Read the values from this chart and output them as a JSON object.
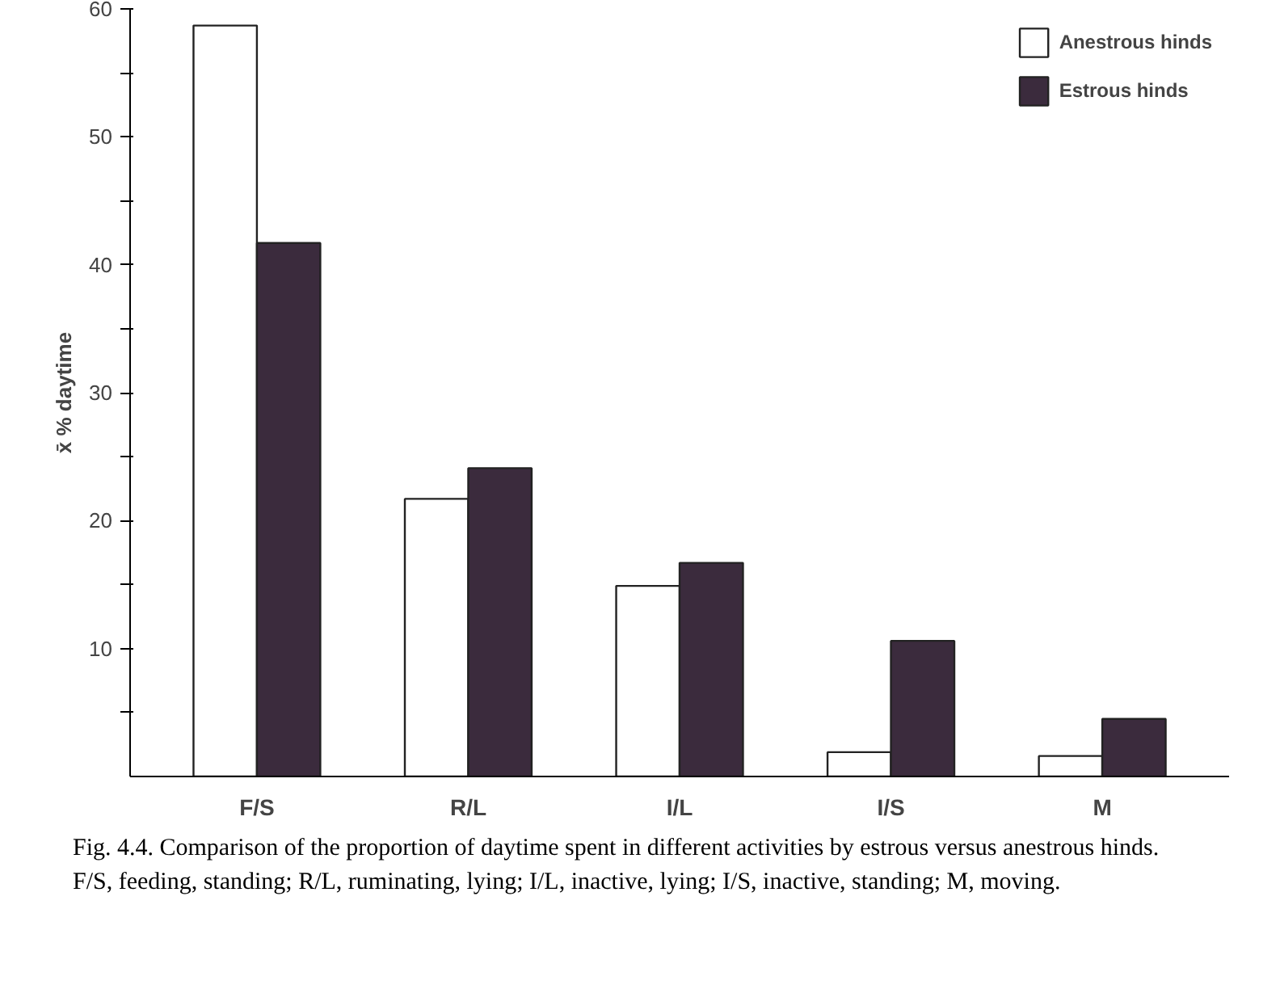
{
  "chart_data": {
    "type": "bar",
    "categories": [
      "F/S",
      "R/L",
      "I/L",
      "I/S",
      "M"
    ],
    "series": [
      {
        "name": "Anestrous hinds",
        "color": "#ffffff",
        "values": [
          58.7,
          21.7,
          14.9,
          1.9,
          1.6
        ]
      },
      {
        "name": "Estrous hinds",
        "color": "#3b2b3d",
        "values": [
          41.7,
          24.1,
          16.7,
          10.6,
          4.5
        ]
      }
    ],
    "ylabel": "x̄ % daytime",
    "ylim": [
      0,
      60
    ],
    "yticks": [
      {
        "value": 5,
        "label": null
      },
      10,
      {
        "value": 15,
        "label": null
      },
      20,
      {
        "value": 25,
        "label": null
      },
      30,
      {
        "value": 35,
        "label": null
      },
      40,
      {
        "value": 45,
        "label": null
      },
      50,
      {
        "value": 55,
        "label": null
      },
      60
    ],
    "grid": false,
    "legend": "top right",
    "annotations": [
      "Fig. 4.4. Comparison of the proportion of daytime spent in different activities by estrous versus anestrous hinds. F/S, feeding, standing; R/L, ruminating, lying; I/L, inactive, lying; I/S, inactive, standing; M, moving."
    ]
  }
}
